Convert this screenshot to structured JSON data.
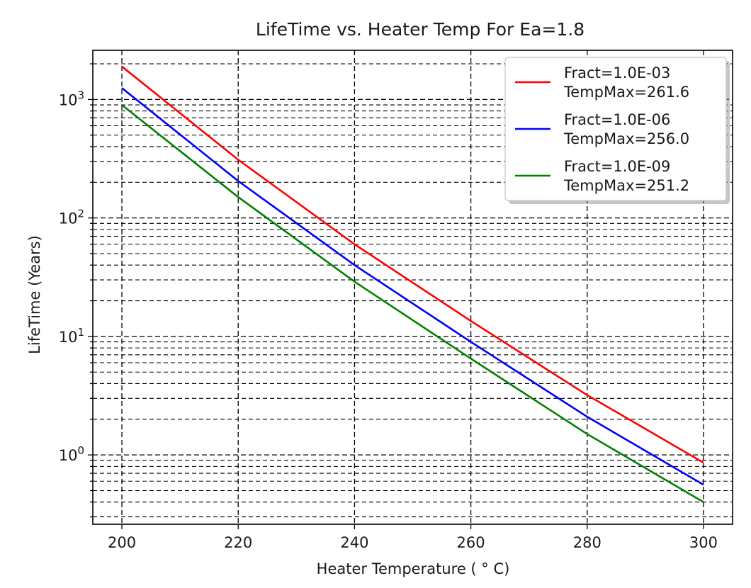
{
  "chart_data": {
    "type": "line",
    "title": "LifeTime vs. Heater Temp For Ea=1.8",
    "xlabel": "Heater Temperature ($^\\circ$C)",
    "xlabel_display": "Heater Temperature ( ° C)",
    "ylabel": "LifeTime (Years)",
    "x_scale": "linear",
    "y_scale": "log",
    "xlim": [
      195,
      305
    ],
    "ylim": [
      0.26,
      2600
    ],
    "xticks": [
      200,
      220,
      240,
      260,
      280,
      300
    ],
    "xtick_labels": [
      "200",
      "220",
      "240",
      "260",
      "280",
      "300"
    ],
    "yticks_major": [
      {
        "value": 1,
        "base": "10",
        "exp": "0"
      },
      {
        "value": 10,
        "base": "10",
        "exp": "1"
      },
      {
        "value": 100,
        "base": "10",
        "exp": "2"
      },
      {
        "value": 1000,
        "base": "10",
        "exp": "3"
      }
    ],
    "grid": {
      "major": true,
      "minor_y": true,
      "style": "dashed"
    },
    "legend": {
      "position": "top-right"
    },
    "series": [
      {
        "name": "Fract=1.0E-03\nTempMax=261.6",
        "label_lines": [
          "Fract=1.0E-03",
          "TempMax=261.6"
        ],
        "color": "#ff0000",
        "x": [
          200,
          220,
          240,
          260,
          280,
          300
        ],
        "y": [
          1900,
          310,
          60,
          13.5,
          3.2,
          0.86
        ]
      },
      {
        "name": "Fract=1.0E-06\nTempMax=256.0",
        "label_lines": [
          "Fract=1.0E-06",
          "TempMax=256.0"
        ],
        "color": "#0000ff",
        "x": [
          200,
          220,
          240,
          260,
          280,
          300
        ],
        "y": [
          1250,
          205,
          40,
          9,
          2.1,
          0.56
        ]
      },
      {
        "name": "Fract=1.0E-09\nTempMax=251.2",
        "label_lines": [
          "Fract=1.0E-09",
          "TempMax=251.2"
        ],
        "color": "#008000",
        "x": [
          200,
          220,
          240,
          260,
          280,
          300
        ],
        "y": [
          900,
          150,
          29,
          6.5,
          1.5,
          0.4
        ]
      }
    ]
  }
}
